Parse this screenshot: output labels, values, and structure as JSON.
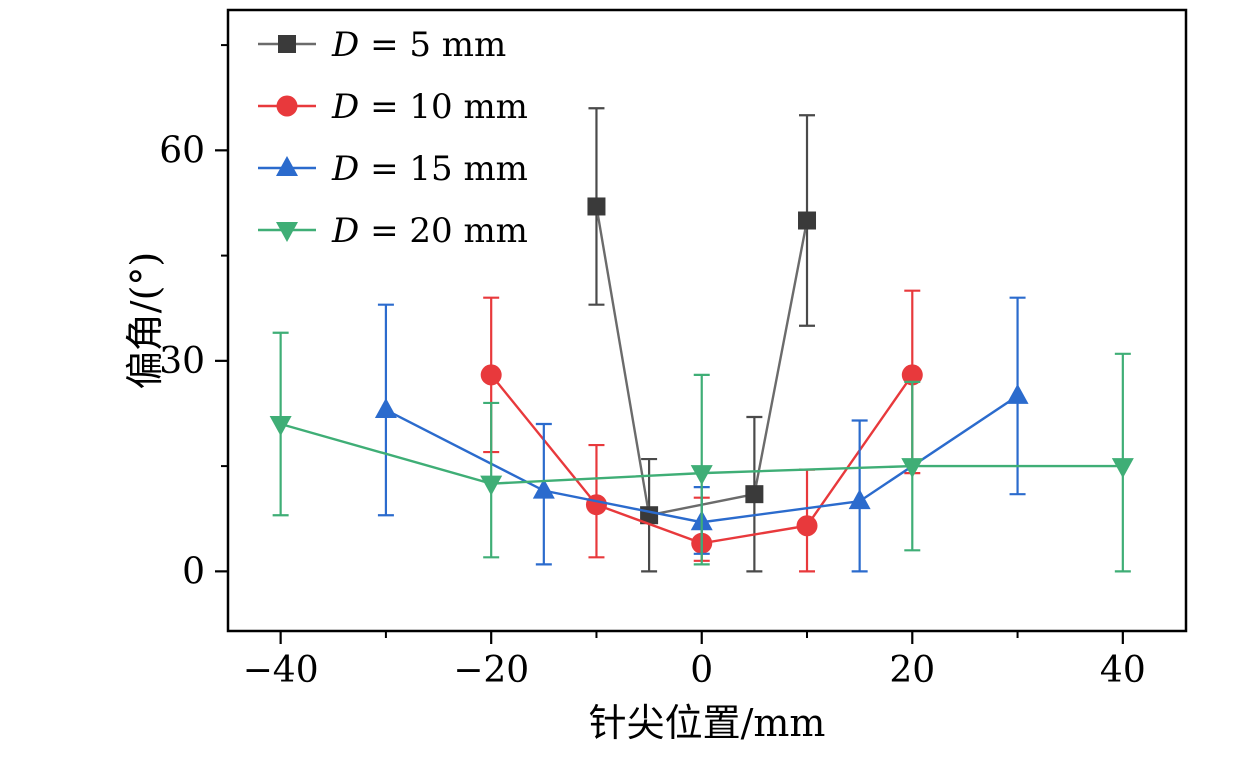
{
  "chart_data": {
    "type": "line",
    "title": "",
    "xlabel": "针尖位置/mm",
    "ylabel": "偏角/(°)",
    "xlim": [
      -45,
      46
    ],
    "ylim": [
      -8.5,
      80
    ],
    "grid": false,
    "legend_position": "top-left",
    "xticks": {
      "values": [
        -40,
        -20,
        0,
        20,
        40
      ],
      "labels": [
        "−40",
        "−20",
        "0",
        "20",
        "40"
      ],
      "minor": [
        -30,
        -10,
        10,
        30
      ]
    },
    "yticks": {
      "values": [
        0,
        30,
        60
      ],
      "labels": [
        "0",
        "30",
        "60"
      ],
      "minor": [
        15,
        45,
        75
      ]
    },
    "series": [
      {
        "name": "D = 5 mm",
        "marker": "square",
        "color": "#3a3a3a",
        "line_color": "#6b6b6b",
        "errorbar_color": "#4a4a4a",
        "points": [
          {
            "x": -10,
            "y": 52,
            "lo": 38,
            "hi": 66
          },
          {
            "x": -5,
            "y": 8,
            "lo": 0,
            "hi": 16
          },
          {
            "x": 5,
            "y": 11,
            "lo": 0,
            "hi": 22
          },
          {
            "x": 10,
            "y": 50,
            "lo": 35,
            "hi": 65
          }
        ]
      },
      {
        "name": "D = 10 mm",
        "marker": "circle",
        "color": "#e8393c",
        "line_color": "#e8393c",
        "errorbar_color": "#e8393c",
        "points": [
          {
            "x": -20,
            "y": 28,
            "lo": 17,
            "hi": 39
          },
          {
            "x": -10,
            "y": 9.5,
            "lo": 2,
            "hi": 18
          },
          {
            "x": 0,
            "y": 4,
            "lo": 1.5,
            "hi": 10.5
          },
          {
            "x": 10,
            "y": 6.5,
            "lo": 0,
            "hi": 14.5
          },
          {
            "x": 20,
            "y": 28,
            "lo": 14,
            "hi": 40
          }
        ]
      },
      {
        "name": "D = 15 mm",
        "marker": "triangle-up",
        "color": "#2b6bcd",
        "line_color": "#2b6bcd",
        "errorbar_color": "#2b6bcd",
        "points": [
          {
            "x": -30,
            "y": 23,
            "lo": 8,
            "hi": 38
          },
          {
            "x": -15,
            "y": 11.5,
            "lo": 1,
            "hi": 21
          },
          {
            "x": 0,
            "y": 7,
            "lo": 2.5,
            "hi": 12
          },
          {
            "x": 15,
            "y": 10,
            "lo": 0,
            "hi": 21.5
          },
          {
            "x": 30,
            "y": 25,
            "lo": 11,
            "hi": 39
          }
        ]
      },
      {
        "name": "D = 20 mm",
        "marker": "triangle-down",
        "color": "#3fae76",
        "line_color": "#3fae76",
        "errorbar_color": "#3fae76",
        "points": [
          {
            "x": -40,
            "y": 21,
            "lo": 8,
            "hi": 34
          },
          {
            "x": -20,
            "y": 12.5,
            "lo": 2,
            "hi": 24
          },
          {
            "x": 0,
            "y": 14,
            "lo": 1,
            "hi": 28
          },
          {
            "x": 20,
            "y": 15,
            "lo": 3,
            "hi": 27
          },
          {
            "x": 40,
            "y": 15,
            "lo": 0,
            "hi": 31
          }
        ]
      }
    ]
  }
}
